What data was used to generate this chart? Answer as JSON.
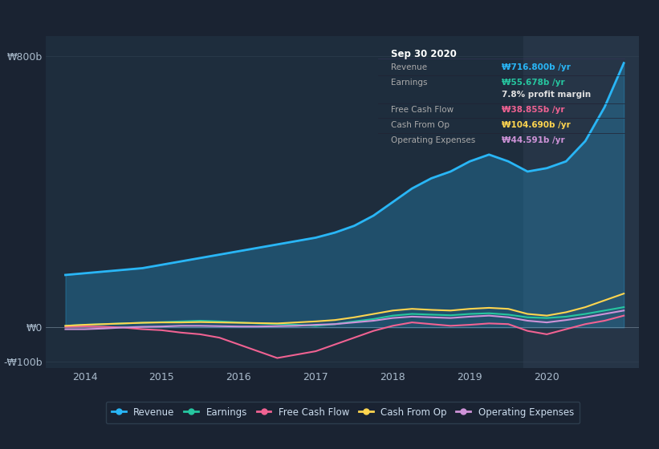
{
  "bg_color": "#1a2332",
  "plot_bg_color": "#1e2d3d",
  "highlight_bg": "#263547",
  "title": "Sep 30 2020",
  "ylabel_800": "₩800b",
  "ylabel_0": "₩0",
  "ylabel_neg100": "-₩100b",
  "xlabel_ticks": [
    "2014",
    "2015",
    "2016",
    "2017",
    "2018",
    "2019",
    "2020"
  ],
  "ylim": [
    -120,
    860
  ],
  "xlim_start": 2013.5,
  "xlim_end": 2021.2,
  "highlight_start": 2019.7,
  "highlight_end": 2021.2,
  "revenue_color": "#29b6f6",
  "earnings_color": "#26c6a0",
  "fcf_color": "#f06292",
  "cashfromop_color": "#ffd54f",
  "opex_color": "#ce93d8",
  "legend_labels": [
    "Revenue",
    "Earnings",
    "Free Cash Flow",
    "Cash From Op",
    "Operating Expenses"
  ],
  "tooltip_title": "Sep 30 2020",
  "tooltip_rows": [
    {
      "label": "Revenue",
      "value": "₩716.800b /yr",
      "color": "#29b6f6",
      "divider": true
    },
    {
      "label": "Earnings",
      "value": "₩55.678b /yr",
      "color": "#26c6a0",
      "divider": false
    },
    {
      "label": "",
      "value": "7.8% profit margin",
      "color": "#e0e0e0",
      "divider": true
    },
    {
      "label": "Free Cash Flow",
      "value": "₩38.855b /yr",
      "color": "#f06292",
      "divider": true
    },
    {
      "label": "Cash From Op",
      "value": "₩104.690b /yr",
      "color": "#ffd54f",
      "divider": true
    },
    {
      "label": "Operating Expenses",
      "value": "₩44.591b /yr",
      "color": "#ce93d8",
      "divider": false
    }
  ],
  "revenue_x": [
    2013.75,
    2014.0,
    2014.25,
    2014.5,
    2014.75,
    2015.0,
    2015.25,
    2015.5,
    2015.75,
    2016.0,
    2016.25,
    2016.5,
    2016.75,
    2017.0,
    2017.25,
    2017.5,
    2017.75,
    2018.0,
    2018.25,
    2018.5,
    2018.75,
    2019.0,
    2019.25,
    2019.5,
    2019.75,
    2020.0,
    2020.25,
    2020.5,
    2020.75,
    2021.0
  ],
  "revenue_y": [
    155,
    160,
    165,
    170,
    175,
    185,
    195,
    205,
    215,
    225,
    235,
    245,
    255,
    265,
    280,
    300,
    330,
    370,
    410,
    440,
    460,
    490,
    510,
    490,
    460,
    470,
    490,
    550,
    650,
    780
  ],
  "earnings_x": [
    2013.75,
    2014.0,
    2014.25,
    2014.5,
    2014.75,
    2015.0,
    2015.25,
    2015.5,
    2015.75,
    2016.0,
    2016.25,
    2016.5,
    2016.75,
    2017.0,
    2017.25,
    2017.5,
    2017.75,
    2018.0,
    2018.25,
    2018.5,
    2018.75,
    2019.0,
    2019.25,
    2019.5,
    2019.75,
    2020.0,
    2020.25,
    2020.5,
    2020.75,
    2021.0
  ],
  "earnings_y": [
    5,
    8,
    10,
    12,
    14,
    16,
    18,
    20,
    18,
    15,
    12,
    10,
    8,
    5,
    10,
    18,
    25,
    35,
    40,
    38,
    36,
    40,
    42,
    38,
    30,
    28,
    32,
    40,
    50,
    60
  ],
  "fcf_x": [
    2013.75,
    2014.0,
    2014.25,
    2014.5,
    2014.75,
    2015.0,
    2015.25,
    2015.5,
    2015.75,
    2016.0,
    2016.25,
    2016.5,
    2016.75,
    2017.0,
    2017.25,
    2017.5,
    2017.75,
    2018.0,
    2018.25,
    2018.5,
    2018.75,
    2019.0,
    2019.25,
    2019.5,
    2019.75,
    2020.0,
    2020.25,
    2020.5,
    2020.75,
    2021.0
  ],
  "fcf_y": [
    2,
    3,
    2,
    0,
    -5,
    -8,
    -15,
    -20,
    -30,
    -50,
    -70,
    -90,
    -80,
    -70,
    -50,
    -30,
    -10,
    5,
    15,
    10,
    5,
    8,
    12,
    10,
    -10,
    -20,
    -5,
    10,
    20,
    35
  ],
  "cashfromop_x": [
    2013.75,
    2014.0,
    2014.25,
    2014.5,
    2014.75,
    2015.0,
    2015.25,
    2015.5,
    2015.75,
    2016.0,
    2016.25,
    2016.5,
    2016.75,
    2017.0,
    2017.25,
    2017.5,
    2017.75,
    2018.0,
    2018.25,
    2018.5,
    2018.75,
    2019.0,
    2019.25,
    2019.5,
    2019.75,
    2020.0,
    2020.25,
    2020.5,
    2020.75,
    2021.0
  ],
  "cashfromop_y": [
    5,
    8,
    10,
    12,
    14,
    15,
    15,
    16,
    15,
    14,
    13,
    12,
    15,
    18,
    22,
    30,
    40,
    50,
    55,
    52,
    50,
    55,
    58,
    55,
    40,
    35,
    45,
    60,
    80,
    100
  ],
  "opex_x": [
    2013.75,
    2014.0,
    2014.25,
    2014.5,
    2014.75,
    2015.0,
    2015.25,
    2015.5,
    2015.75,
    2016.0,
    2016.25,
    2016.5,
    2016.75,
    2017.0,
    2017.25,
    2017.5,
    2017.75,
    2018.0,
    2018.25,
    2018.5,
    2018.75,
    2019.0,
    2019.25,
    2019.5,
    2019.75,
    2020.0,
    2020.25,
    2020.5,
    2020.75,
    2021.0
  ],
  "opex_y": [
    -5,
    -5,
    -3,
    0,
    2,
    3,
    5,
    5,
    4,
    3,
    3,
    4,
    5,
    8,
    10,
    15,
    20,
    28,
    32,
    30,
    28,
    32,
    35,
    30,
    20,
    15,
    22,
    30,
    40,
    50
  ]
}
